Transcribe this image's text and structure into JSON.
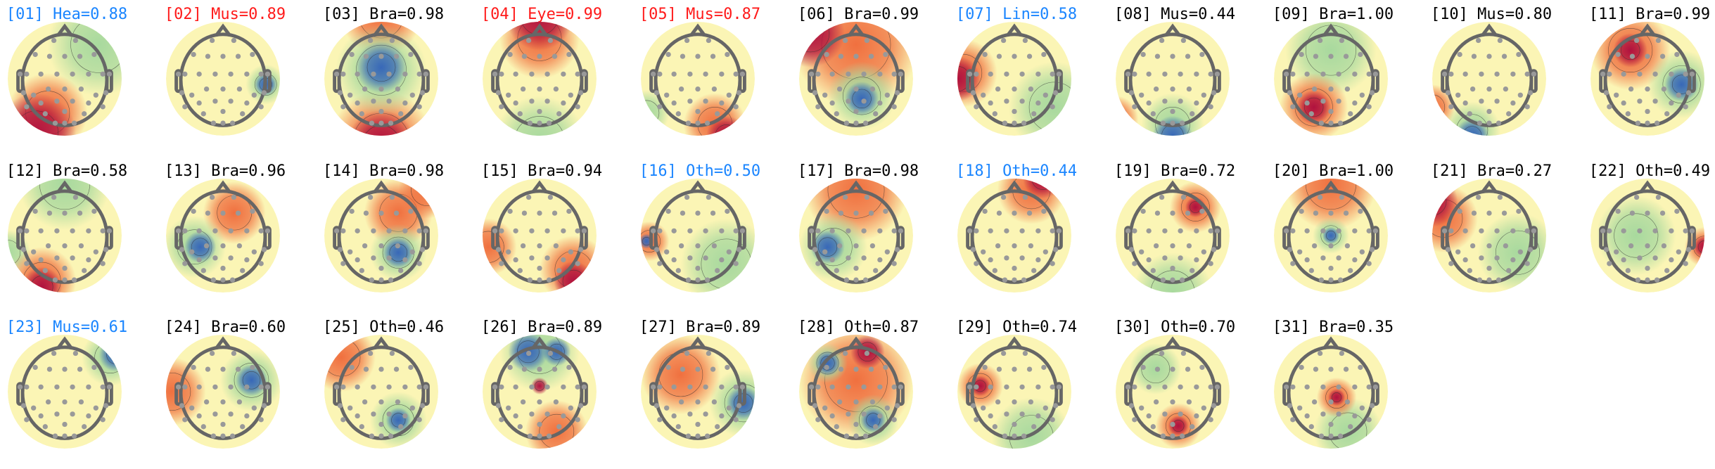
{
  "colors": {
    "blue": "#1a85ff",
    "red": "#ff1a1a",
    "black": "#000000"
  },
  "components": [
    {
      "label": "[01] Hea=0.88",
      "color": "blue"
    },
    {
      "label": "[02] Mus=0.89",
      "color": "red"
    },
    {
      "label": "[03] Bra=0.98",
      "color": "black"
    },
    {
      "label": "[04] Eye=0.99",
      "color": "red"
    },
    {
      "label": "[05] Mus=0.87",
      "color": "red"
    },
    {
      "label": "[06] Bra=0.99",
      "color": "black"
    },
    {
      "label": "[07] Lin=0.58",
      "color": "blue"
    },
    {
      "label": "[08] Mus=0.44",
      "color": "black"
    },
    {
      "label": "[09] Bra=1.00",
      "color": "black"
    },
    {
      "label": "[10] Mus=0.80",
      "color": "black"
    },
    {
      "label": "[11] Bra=0.99",
      "color": "black"
    },
    {
      "label": "[12] Bra=0.58",
      "color": "black"
    },
    {
      "label": "[13] Bra=0.96",
      "color": "black"
    },
    {
      "label": "[14] Bra=0.98",
      "color": "black"
    },
    {
      "label": "[15] Bra=0.94",
      "color": "black"
    },
    {
      "label": "[16] Oth=0.50",
      "color": "blue"
    },
    {
      "label": "[17] Bra=0.98",
      "color": "black"
    },
    {
      "label": "[18] Oth=0.44",
      "color": "blue"
    },
    {
      "label": "[19] Bra=0.72",
      "color": "black"
    },
    {
      "label": "[20] Bra=1.00",
      "color": "black"
    },
    {
      "label": "[21] Bra=0.27",
      "color": "black"
    },
    {
      "label": "[22] Oth=0.49",
      "color": "black"
    },
    {
      "label": "[23] Mus=0.61",
      "color": "blue"
    },
    {
      "label": "[24] Bra=0.60",
      "color": "black"
    },
    {
      "label": "[25] Oth=0.46",
      "color": "black"
    },
    {
      "label": "[26] Bra=0.89",
      "color": "black"
    },
    {
      "label": "[27] Bra=0.89",
      "color": "black"
    },
    {
      "label": "[28] Oth=0.87",
      "color": "black"
    },
    {
      "label": "[29] Oth=0.74",
      "color": "black"
    },
    {
      "label": "[30] Oth=0.70",
      "color": "black"
    },
    {
      "label": "[31] Bra=0.35",
      "color": "black"
    }
  ]
}
